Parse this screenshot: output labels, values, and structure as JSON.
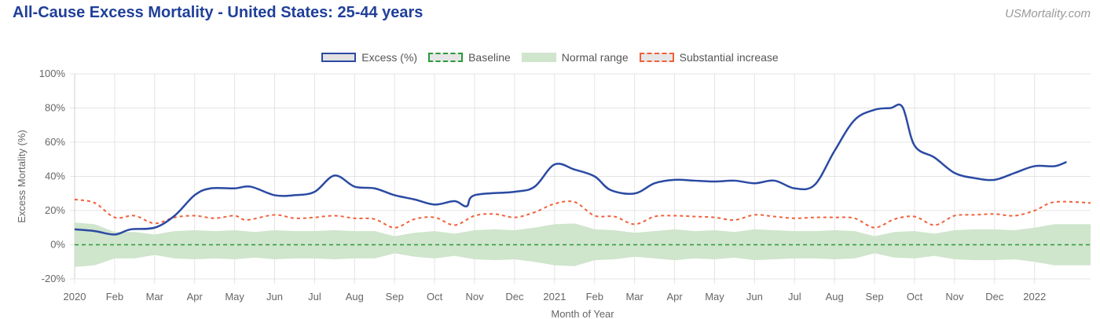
{
  "header": {
    "title": "All-Cause Excess Mortality - United States: 25-44 years",
    "brand": "USMortality.com"
  },
  "legend": [
    {
      "label": "Excess (%)",
      "kind": "excess"
    },
    {
      "label": "Baseline",
      "kind": "baseline"
    },
    {
      "label": "Normal range",
      "kind": "normal"
    },
    {
      "label": "Substantial increase",
      "kind": "subst"
    }
  ],
  "colors": {
    "excess": "#2b4aa3",
    "baseline": "#2a9a3a",
    "normal_range": "#cfe5cc",
    "substantial": "#f0603a",
    "grid": "#e4e4e4"
  },
  "chart_data": {
    "type": "line",
    "xlabel": "Month of Year",
    "ylabel": "Excess Mortality (%)",
    "ylim": [
      -20,
      100
    ],
    "yticks": [
      -20,
      0,
      20,
      40,
      60,
      80,
      100
    ],
    "ytick_labels": [
      "-20%",
      "0%",
      "20%",
      "40%",
      "60%",
      "80%",
      "100%"
    ],
    "xlim": [
      0,
      25.4
    ],
    "x_ticks": [
      {
        "x": 0,
        "label": "2020"
      },
      {
        "x": 1,
        "label": "Feb"
      },
      {
        "x": 2,
        "label": "Mar"
      },
      {
        "x": 3,
        "label": "Apr"
      },
      {
        "x": 4,
        "label": "May"
      },
      {
        "x": 5,
        "label": "Jun"
      },
      {
        "x": 6,
        "label": "Jul"
      },
      {
        "x": 7,
        "label": "Aug"
      },
      {
        "x": 8,
        "label": "Sep"
      },
      {
        "x": 9,
        "label": "Oct"
      },
      {
        "x": 10,
        "label": "Nov"
      },
      {
        "x": 11,
        "label": "Dec"
      },
      {
        "x": 12,
        "label": "2021"
      },
      {
        "x": 13,
        "label": "Feb"
      },
      {
        "x": 14,
        "label": "Mar"
      },
      {
        "x": 15,
        "label": "Apr"
      },
      {
        "x": 16,
        "label": "May"
      },
      {
        "x": 17,
        "label": "Jun"
      },
      {
        "x": 18,
        "label": "Jul"
      },
      {
        "x": 19,
        "label": "Aug"
      },
      {
        "x": 20,
        "label": "Sep"
      },
      {
        "x": 21,
        "label": "Oct"
      },
      {
        "x": 22,
        "label": "Nov"
      },
      {
        "x": 23,
        "label": "Dec"
      },
      {
        "x": 24,
        "label": "2022"
      }
    ],
    "series": [
      {
        "name": "Excess (%)",
        "kind": "excess",
        "points": [
          [
            0,
            9
          ],
          [
            0.5,
            8
          ],
          [
            1,
            6
          ],
          [
            1.4,
            9
          ],
          [
            2,
            10
          ],
          [
            2.5,
            17
          ],
          [
            3,
            29
          ],
          [
            3.4,
            33
          ],
          [
            4,
            33
          ],
          [
            4.4,
            34
          ],
          [
            5,
            29
          ],
          [
            5.5,
            29
          ],
          [
            6,
            31
          ],
          [
            6.5,
            40.5
          ],
          [
            7,
            34
          ],
          [
            7.5,
            33
          ],
          [
            8,
            29
          ],
          [
            8.5,
            26.5
          ],
          [
            9,
            23.5
          ],
          [
            9.5,
            25.5
          ],
          [
            9.8,
            22.5
          ],
          [
            10,
            29
          ],
          [
            11,
            31
          ],
          [
            11.5,
            34
          ],
          [
            12,
            47
          ],
          [
            12.5,
            44
          ],
          [
            13,
            40
          ],
          [
            13.4,
            32
          ],
          [
            14,
            30
          ],
          [
            14.5,
            36
          ],
          [
            15,
            38
          ],
          [
            15.5,
            37.5
          ],
          [
            16,
            37
          ],
          [
            16.5,
            37.5
          ],
          [
            17,
            36
          ],
          [
            17.5,
            37.5
          ],
          [
            18,
            33
          ],
          [
            18.5,
            35
          ],
          [
            19,
            55
          ],
          [
            19.5,
            73
          ],
          [
            20,
            79
          ],
          [
            20.4,
            80
          ],
          [
            20.7,
            80.5
          ],
          [
            21,
            58
          ],
          [
            21.5,
            51
          ],
          [
            22,
            42
          ],
          [
            22.5,
            39
          ],
          [
            23,
            38
          ],
          [
            23.5,
            42
          ],
          [
            24,
            46
          ],
          [
            24.5,
            46
          ],
          [
            24.8,
            48.5
          ]
        ]
      },
      {
        "name": "Baseline",
        "kind": "baseline",
        "points": [
          [
            0,
            0
          ],
          [
            25.4,
            0
          ]
        ]
      },
      {
        "name": "Substantial increase",
        "kind": "subst",
        "points": [
          [
            0,
            26.5
          ],
          [
            0.5,
            24.5
          ],
          [
            1,
            16
          ],
          [
            1.5,
            17
          ],
          [
            2,
            12.5
          ],
          [
            2.5,
            16
          ],
          [
            3,
            17
          ],
          [
            3.5,
            15.5
          ],
          [
            4,
            17
          ],
          [
            4.3,
            14.5
          ],
          [
            5,
            17.5
          ],
          [
            5.5,
            15.5
          ],
          [
            6,
            16
          ],
          [
            6.5,
            17
          ],
          [
            7,
            15.5
          ],
          [
            7.5,
            15
          ],
          [
            8,
            10
          ],
          [
            8.5,
            15
          ],
          [
            9,
            16
          ],
          [
            9.5,
            11.5
          ],
          [
            10,
            17
          ],
          [
            10.5,
            18
          ],
          [
            11,
            16
          ],
          [
            11.5,
            19
          ],
          [
            12,
            24
          ],
          [
            12.5,
            25
          ],
          [
            13,
            17
          ],
          [
            13.5,
            16.5
          ],
          [
            14,
            12
          ],
          [
            14.5,
            16.5
          ],
          [
            15,
            17
          ],
          [
            15.5,
            16.5
          ],
          [
            16,
            16
          ],
          [
            16.5,
            14.5
          ],
          [
            17,
            17.5
          ],
          [
            17.5,
            16.5
          ],
          [
            18,
            15.5
          ],
          [
            18.5,
            16
          ],
          [
            19,
            16
          ],
          [
            19.5,
            15.5
          ],
          [
            20,
            10
          ],
          [
            20.5,
            15
          ],
          [
            21,
            16.5
          ],
          [
            21.5,
            11.5
          ],
          [
            22,
            17
          ],
          [
            22.5,
            17.5
          ],
          [
            23,
            18
          ],
          [
            23.5,
            17
          ],
          [
            24,
            20
          ],
          [
            24.5,
            25
          ],
          [
            25.4,
            24.5
          ]
        ]
      },
      {
        "name": "Normal range",
        "kind": "normal",
        "upper": [
          [
            0,
            13
          ],
          [
            0.5,
            12
          ],
          [
            1,
            7.5
          ],
          [
            1.5,
            7.5
          ],
          [
            2,
            6
          ],
          [
            2.5,
            8
          ],
          [
            3,
            8.5
          ],
          [
            3.5,
            8
          ],
          [
            4,
            8.5
          ],
          [
            4.5,
            7.5
          ],
          [
            5,
            8.5
          ],
          [
            5.5,
            8
          ],
          [
            6,
            8
          ],
          [
            6.5,
            8.5
          ],
          [
            7,
            8
          ],
          [
            7.5,
            8
          ],
          [
            8,
            5
          ],
          [
            8.5,
            7
          ],
          [
            9,
            8
          ],
          [
            9.5,
            6.5
          ],
          [
            10,
            8.5
          ],
          [
            10.5,
            9
          ],
          [
            11,
            8.5
          ],
          [
            11.5,
            10
          ],
          [
            12,
            12
          ],
          [
            12.5,
            12.5
          ],
          [
            13,
            9
          ],
          [
            13.5,
            8.5
          ],
          [
            14,
            7
          ],
          [
            14.5,
            8
          ],
          [
            15,
            9
          ],
          [
            15.5,
            8
          ],
          [
            16,
            8.5
          ],
          [
            16.5,
            7.5
          ],
          [
            17,
            9
          ],
          [
            17.5,
            8.5
          ],
          [
            18,
            8
          ],
          [
            18.5,
            8
          ],
          [
            19,
            8.5
          ],
          [
            19.5,
            8
          ],
          [
            20,
            5
          ],
          [
            20.5,
            7.5
          ],
          [
            21,
            8
          ],
          [
            21.5,
            6.5
          ],
          [
            22,
            8.5
          ],
          [
            22.5,
            9
          ],
          [
            23,
            9
          ],
          [
            23.5,
            8.5
          ],
          [
            24,
            10
          ],
          [
            24.5,
            12
          ],
          [
            25.4,
            12
          ]
        ],
        "lower": [
          [
            0,
            -13
          ],
          [
            0.5,
            -12
          ],
          [
            1,
            -8
          ],
          [
            1.5,
            -8
          ],
          [
            2,
            -6
          ],
          [
            2.5,
            -8
          ],
          [
            3,
            -8.5
          ],
          [
            3.5,
            -8
          ],
          [
            4,
            -8.5
          ],
          [
            4.5,
            -7.5
          ],
          [
            5,
            -8.5
          ],
          [
            5.5,
            -8
          ],
          [
            6,
            -8
          ],
          [
            6.5,
            -8.5
          ],
          [
            7,
            -8
          ],
          [
            7.5,
            -8
          ],
          [
            8,
            -5
          ],
          [
            8.5,
            -7
          ],
          [
            9,
            -8
          ],
          [
            9.5,
            -6.5
          ],
          [
            10,
            -8.5
          ],
          [
            10.5,
            -9
          ],
          [
            11,
            -8.5
          ],
          [
            11.5,
            -10
          ],
          [
            12,
            -12
          ],
          [
            12.5,
            -12.5
          ],
          [
            13,
            -9
          ],
          [
            13.5,
            -8.5
          ],
          [
            14,
            -7
          ],
          [
            14.5,
            -8
          ],
          [
            15,
            -9
          ],
          [
            15.5,
            -8
          ],
          [
            16,
            -8.5
          ],
          [
            16.5,
            -7.5
          ],
          [
            17,
            -9
          ],
          [
            17.5,
            -8.5
          ],
          [
            18,
            -8
          ],
          [
            18.5,
            -8
          ],
          [
            19,
            -8.5
          ],
          [
            19.5,
            -8
          ],
          [
            20,
            -5
          ],
          [
            20.5,
            -7.5
          ],
          [
            21,
            -8
          ],
          [
            21.5,
            -6.5
          ],
          [
            22,
            -8.5
          ],
          [
            22.5,
            -9
          ],
          [
            23,
            -9
          ],
          [
            23.5,
            -8.5
          ],
          [
            24,
            -10
          ],
          [
            24.5,
            -12
          ],
          [
            25.4,
            -12
          ]
        ]
      }
    ],
    "grid": true,
    "legend_position": "top-center"
  }
}
